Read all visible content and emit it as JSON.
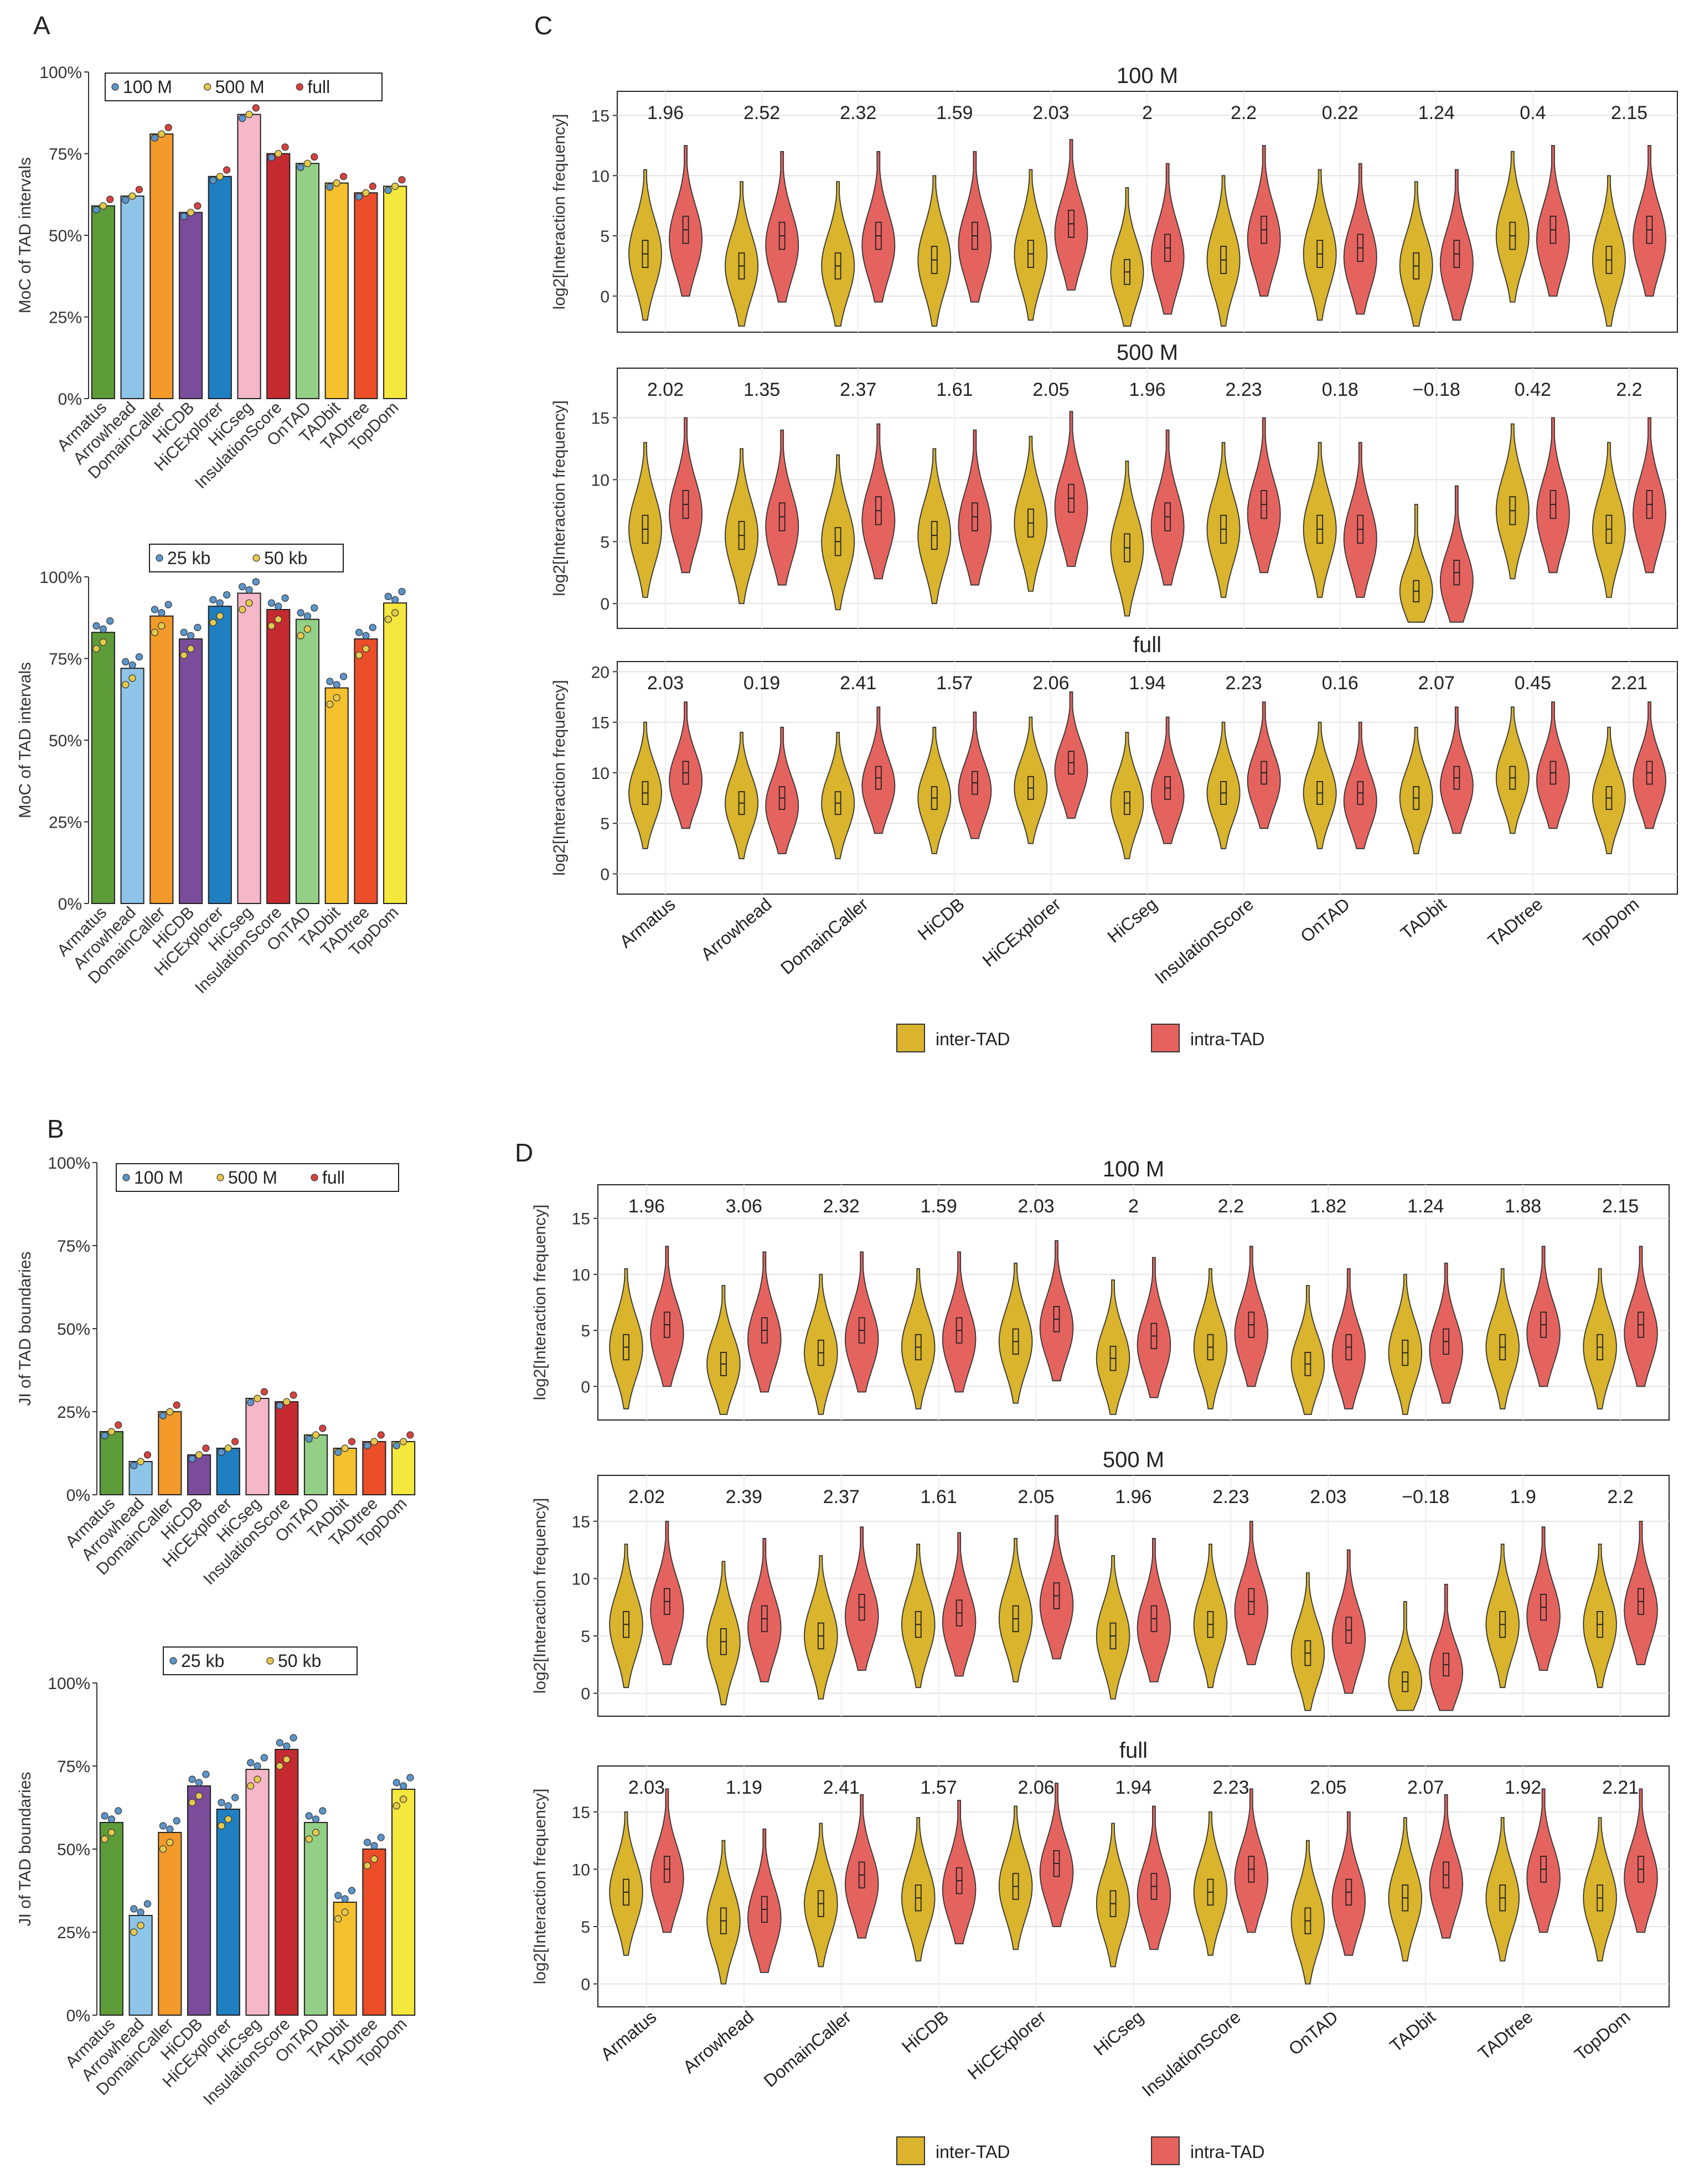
{
  "panels": {
    "A": "A",
    "B": "B",
    "C": "C",
    "D": "D"
  },
  "methods": [
    "Armatus",
    "Arrowhead",
    "DomainCaller",
    "HiCDB",
    "HiCExplorer",
    "HiCseg",
    "InsulationScore",
    "OnTAD",
    "TADbit",
    "TADtree",
    "TopDom"
  ],
  "colors": {
    "bars": [
      "#5e9c3a",
      "#8ec4e8",
      "#f39a2b",
      "#7b4c9a",
      "#1f7fc1",
      "#f6b7c8",
      "#c62a31",
      "#93cf86",
      "#f6c12f",
      "#eb4e29",
      "#f4e73d"
    ],
    "inter": "#d9b42c",
    "intra": "#e5635f"
  },
  "axis_ticks": {
    "pct": [
      "0%",
      "25%",
      "50%",
      "75%",
      "100%"
    ],
    "c_top": [
      "0",
      "5",
      "10",
      "15"
    ],
    "c_full": [
      "0",
      "5",
      "10",
      "15",
      "20"
    ]
  },
  "bar_charts": [
    {
      "id": "A1",
      "ylabel": "MoC of TAD intervals",
      "legend": [
        "100 M",
        "500 M",
        "full"
      ],
      "values": [
        0.59,
        0.62,
        0.81,
        0.57,
        0.68,
        0.87,
        0.75,
        0.72,
        0.66,
        0.63,
        0.65
      ]
    },
    {
      "id": "A2",
      "ylabel": "MoC of TAD intervals",
      "legend": [
        "25 kb",
        "50 kb"
      ],
      "values": [
        0.83,
        0.72,
        0.88,
        0.81,
        0.91,
        0.95,
        0.9,
        0.87,
        0.66,
        0.81,
        0.92
      ]
    },
    {
      "id": "B1",
      "ylabel": "JI of TAD boundaries",
      "legend": [
        "100 M",
        "500 M",
        "full"
      ],
      "values": [
        0.19,
        0.1,
        0.25,
        0.12,
        0.14,
        0.29,
        0.28,
        0.18,
        0.14,
        0.16,
        0.16
      ]
    },
    {
      "id": "B2",
      "ylabel": "JI of TAD boundaries",
      "legend": [
        "25 kb",
        "50 kb"
      ],
      "values": [
        0.58,
        0.3,
        0.55,
        0.69,
        0.62,
        0.74,
        0.8,
        0.58,
        0.34,
        0.5,
        0.68
      ]
    }
  ],
  "violin_panels": {
    "C": {
      "ylabel": "log2[Interaction frequency]",
      "legend": [
        "inter-TAD",
        "intra-TAD"
      ],
      "facets": [
        {
          "title": "100 M",
          "ann": [
            "1.96",
            "2.52",
            "2.32",
            "1.59",
            "2.03",
            "2",
            "2.2",
            "0.22",
            "1.24",
            "0.4",
            "2.15"
          ]
        },
        {
          "title": "500 M",
          "ann": [
            "2.02",
            "1.35",
            "2.37",
            "1.61",
            "2.05",
            "1.96",
            "2.23",
            "0.18",
            "−0.18",
            "0.42",
            "2.2"
          ]
        },
        {
          "title": "full",
          "ann": [
            "2.03",
            "0.19",
            "2.41",
            "1.57",
            "2.06",
            "1.94",
            "2.23",
            "0.16",
            "2.07",
            "0.45",
            "2.21"
          ]
        }
      ]
    },
    "D": {
      "ylabel": "log2[Interaction frequency]",
      "legend": [
        "inter-TAD",
        "intra-TAD"
      ],
      "facets": [
        {
          "title": "100 M",
          "ann": [
            "1.96",
            "3.06",
            "2.32",
            "1.59",
            "2.03",
            "2",
            "2.2",
            "1.82",
            "1.24",
            "1.88",
            "2.15"
          ]
        },
        {
          "title": "500 M",
          "ann": [
            "2.02",
            "2.39",
            "2.37",
            "1.61",
            "2.05",
            "1.96",
            "2.23",
            "2.03",
            "−0.18",
            "1.9",
            "2.2"
          ]
        },
        {
          "title": "full",
          "ann": [
            "2.03",
            "1.19",
            "2.41",
            "1.57",
            "2.06",
            "1.94",
            "2.23",
            "2.05",
            "2.07",
            "1.92",
            "2.21"
          ]
        }
      ]
    }
  },
  "chart_data": [
    {
      "type": "bar",
      "title": "",
      "ylabel": "MoC of TAD intervals",
      "categories": [
        "Armatus",
        "Arrowhead",
        "DomainCaller",
        "HiCDB",
        "HiCExplorer",
        "HiCseg",
        "InsulationScore",
        "OnTAD",
        "TADbit",
        "TADtree",
        "TopDom"
      ],
      "values": [
        0.59,
        0.62,
        0.81,
        0.57,
        0.68,
        0.87,
        0.75,
        0.72,
        0.66,
        0.63,
        0.65
      ],
      "ylim": [
        0,
        1
      ],
      "legend": [
        "100 M",
        "500 M",
        "full"
      ]
    },
    {
      "type": "bar",
      "title": "",
      "ylabel": "MoC of TAD intervals",
      "categories": [
        "Armatus",
        "Arrowhead",
        "DomainCaller",
        "HiCDB",
        "HiCExplorer",
        "HiCseg",
        "InsulationScore",
        "OnTAD",
        "TADbit",
        "TADtree",
        "TopDom"
      ],
      "values": [
        0.83,
        0.72,
        0.88,
        0.81,
        0.91,
        0.95,
        0.9,
        0.87,
        0.66,
        0.81,
        0.92
      ],
      "ylim": [
        0,
        1
      ],
      "legend": [
        "25 kb",
        "50 kb"
      ]
    },
    {
      "type": "bar",
      "title": "",
      "ylabel": "JI of TAD boundaries",
      "categories": [
        "Armatus",
        "Arrowhead",
        "DomainCaller",
        "HiCDB",
        "HiCExplorer",
        "HiCseg",
        "InsulationScore",
        "OnTAD",
        "TADbit",
        "TADtree",
        "TopDom"
      ],
      "values": [
        0.19,
        0.1,
        0.25,
        0.12,
        0.14,
        0.29,
        0.28,
        0.18,
        0.14,
        0.16,
        0.16
      ],
      "ylim": [
        0,
        1
      ],
      "legend": [
        "100 M",
        "500 M",
        "full"
      ]
    },
    {
      "type": "bar",
      "title": "",
      "ylabel": "JI of TAD boundaries",
      "categories": [
        "Armatus",
        "Arrowhead",
        "DomainCaller",
        "HiCDB",
        "HiCExplorer",
        "HiCseg",
        "InsulationScore",
        "OnTAD",
        "TADbit",
        "TADtree",
        "TopDom"
      ],
      "values": [
        0.58,
        0.3,
        0.55,
        0.69,
        0.62,
        0.74,
        0.8,
        0.58,
        0.34,
        0.5,
        0.68
      ],
      "ylim": [
        0,
        1
      ],
      "legend": [
        "25 kb",
        "50 kb"
      ]
    },
    {
      "type": "violin",
      "panel": "C",
      "facet": "100 M",
      "ylim": [
        -3,
        17
      ],
      "categories": [
        "Armatus",
        "Arrowhead",
        "DomainCaller",
        "HiCDB",
        "HiCExplorer",
        "HiCseg",
        "InsulationScore",
        "OnTAD",
        "TADbit",
        "TADtree",
        "TopDom"
      ],
      "series": [
        {
          "name": "inter-TAD",
          "median": [
            3.5,
            2.5,
            2.5,
            3,
            3.5,
            2,
            3,
            3.5,
            2.5,
            5,
            3
          ]
        },
        {
          "name": "intra-TAD",
          "median": [
            5.5,
            5,
            5,
            5,
            6,
            4,
            5.5,
            4,
            3.5,
            5.5,
            5.5
          ]
        }
      ]
    },
    {
      "type": "violin",
      "panel": "C",
      "facet": "500 M",
      "ylim": [
        -2,
        19
      ],
      "categories": [
        "Armatus",
        "Arrowhead",
        "DomainCaller",
        "HiCDB",
        "HiCExplorer",
        "HiCseg",
        "InsulationScore",
        "OnTAD",
        "TADbit",
        "TADtree",
        "TopDom"
      ],
      "series": [
        {
          "name": "inter-TAD",
          "median": [
            6,
            5.5,
            5,
            5.5,
            6.5,
            4.5,
            6,
            6,
            1,
            7.5,
            6
          ]
        },
        {
          "name": "intra-TAD",
          "median": [
            8,
            7,
            7.5,
            7,
            8.5,
            7,
            8,
            6,
            2.5,
            8,
            8
          ]
        }
      ]
    },
    {
      "type": "violin",
      "panel": "C",
      "facet": "full",
      "ylim": [
        -2,
        21
      ],
      "categories": [
        "Armatus",
        "Arrowhead",
        "DomainCaller",
        "HiCDB",
        "HiCExplorer",
        "HiCseg",
        "InsulationScore",
        "OnTAD",
        "TADbit",
        "TADtree",
        "TopDom"
      ],
      "series": [
        {
          "name": "inter-TAD",
          "median": [
            8,
            7,
            7,
            7.5,
            8.5,
            7,
            8,
            8,
            7.5,
            9.5,
            7.5
          ]
        },
        {
          "name": "intra-TAD",
          "median": [
            10,
            7.5,
            9.5,
            9,
            11,
            8.5,
            10,
            8,
            9.5,
            10,
            10
          ]
        }
      ]
    },
    {
      "type": "violin",
      "panel": "D",
      "facet": "100 M",
      "ylim": [
        -3,
        18
      ],
      "categories": [
        "Armatus",
        "Arrowhead",
        "DomainCaller",
        "HiCDB",
        "HiCExplorer",
        "HiCseg",
        "InsulationScore",
        "OnTAD",
        "TADbit",
        "TADtree",
        "TopDom"
      ],
      "series": [
        {
          "name": "inter-TAD",
          "median": [
            3.5,
            2,
            3,
            3.5,
            4,
            2.5,
            3.5,
            2,
            3,
            3.5,
            3.5
          ]
        },
        {
          "name": "intra-TAD",
          "median": [
            5.5,
            5,
            5,
            5,
            6,
            4.5,
            5.5,
            3.5,
            4,
            5.5,
            5.5
          ]
        }
      ]
    },
    {
      "type": "violin",
      "panel": "D",
      "facet": "500 M",
      "ylim": [
        -2,
        19
      ],
      "categories": [
        "Armatus",
        "Arrowhead",
        "DomainCaller",
        "HiCDB",
        "HiCExplorer",
        "HiCseg",
        "InsulationScore",
        "OnTAD",
        "TADbit",
        "TADtree",
        "TopDom"
      ],
      "series": [
        {
          "name": "inter-TAD",
          "median": [
            6,
            4.5,
            5,
            6,
            6.5,
            5,
            6,
            3.5,
            1,
            6,
            6
          ]
        },
        {
          "name": "intra-TAD",
          "median": [
            8,
            6.5,
            7.5,
            7,
            8.5,
            6.5,
            8,
            5.5,
            2.5,
            7.5,
            8
          ]
        }
      ]
    },
    {
      "type": "violin",
      "panel": "D",
      "facet": "full",
      "ylim": [
        -2,
        19
      ],
      "categories": [
        "Armatus",
        "Arrowhead",
        "DomainCaller",
        "HiCDB",
        "HiCExplorer",
        "HiCseg",
        "InsulationScore",
        "OnTAD",
        "TADbit",
        "TADtree",
        "TopDom"
      ],
      "series": [
        {
          "name": "inter-TAD",
          "median": [
            8,
            5.5,
            7,
            7.5,
            8.5,
            7,
            8,
            5.5,
            7.5,
            7.5,
            7.5
          ]
        },
        {
          "name": "intra-TAD",
          "median": [
            10,
            6.5,
            9.5,
            9,
            10.5,
            8.5,
            10,
            8,
            9.5,
            10,
            10
          ]
        }
      ]
    }
  ]
}
